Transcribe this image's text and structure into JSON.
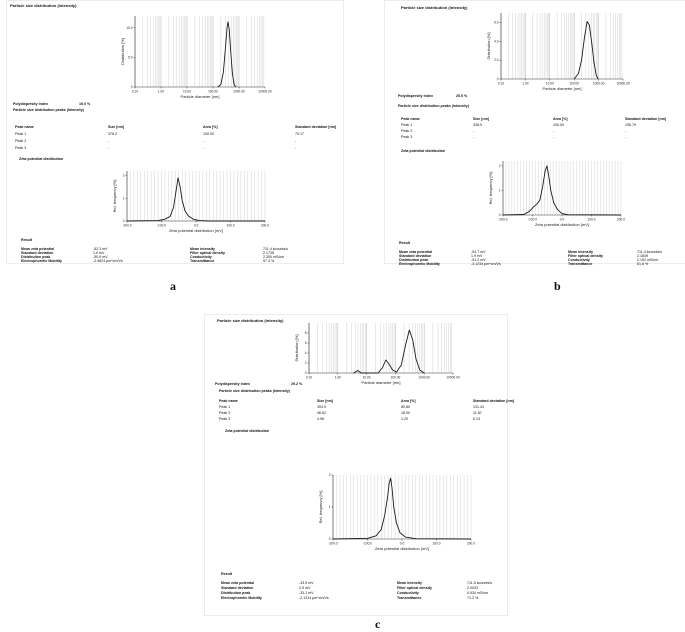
{
  "panels": [
    {
      "letter": "a",
      "psd_title": "Particle size distribution (Intensity)",
      "pdi_label": "Polydispersity index",
      "pdi_value": "19.0 %",
      "peaks_title": "Particle size distribution peaks (Intensity)",
      "peak_headers": [
        "Peak name",
        "Size [nm]",
        "Area [%]",
        "Standard deviation [nm]"
      ],
      "peak_rows": [
        [
          "Peak 1",
          "376.2",
          "100.00",
          "79.17"
        ],
        [
          "Peak 2",
          "-",
          "-",
          "-"
        ],
        [
          "Peak 3",
          "-",
          "-",
          "-"
        ]
      ],
      "zeta_title": "Zeta potential distribution",
      "result_title": "Result",
      "results_left": [
        [
          "Mean zeta potential",
          "-52.3 mV"
        ],
        [
          "Standard deviation",
          "1.9 mV"
        ],
        [
          "Distribution peak",
          "-50.9 mV"
        ],
        [
          "Electrophoretic Mobility",
          "-2.9824 µm*cm/Vs"
        ]
      ],
      "results_right": [
        [
          "Mean intensity",
          "711.4 kcounts/s"
        ],
        [
          "Filter optical density",
          "2.1738"
        ],
        [
          "Conductivity",
          "2.300 mS/cm"
        ],
        [
          "Transmittance",
          "57.3 %"
        ]
      ]
    },
    {
      "letter": "b",
      "psd_title": "Particle size distribution (Intensity)",
      "pdi_label": "Polydispersity index",
      "pdi_value": "25.5 %",
      "peaks_title": "Particle size distribution peaks (Intensity)",
      "peak_headers": [
        "Peak name",
        "Size [nm]",
        "Area [%]",
        "Standard deviation [nm]"
      ],
      "peak_rows": [
        [
          "Peak 1",
          "338.0",
          "100.00",
          "155.79"
        ],
        [
          "Peak 2",
          "-",
          "-",
          "-"
        ],
        [
          "Peak 3",
          "-",
          "-",
          "-"
        ]
      ],
      "zeta_title": "Zeta potential distribution",
      "result_title": "Result",
      "results_left": [
        [
          "Mean zeta potential",
          "-54.7 mV"
        ],
        [
          "Standard deviation",
          "1.9 mV"
        ],
        [
          "Distribution peak",
          "-51.2 mV"
        ],
        [
          "Electrophoretic Mobility",
          "-3.1244 µm*cm/Vs"
        ]
      ],
      "results_right": [
        [
          "Mean intensity",
          "711.4 kcounts/s"
        ],
        [
          "Filter optical density",
          "2.1839"
        ],
        [
          "Conductivity",
          "2.192 mS/cm"
        ],
        [
          "Transmittance",
          "61.8 %"
        ]
      ]
    },
    {
      "letter": "c",
      "psd_title": "Particle size distribution (Intensity)",
      "pdi_label": "Polydispersity index",
      "pdi_value": "29.2 %",
      "peaks_title": "Particle size distribution peaks (Intensity)",
      "peak_headers": [
        "Peak name",
        "Size [nm]",
        "Area [%]",
        "Standard deviation [nm]"
      ],
      "peak_rows": [
        [
          "Peak 1",
          "304.9",
          "80.80",
          "131.41"
        ],
        [
          "Peak 2",
          "46.62",
          "18.00",
          "11.87"
        ],
        [
          "Peak 3",
          "4.96",
          "1.20",
          "0.13"
        ]
      ],
      "zeta_title": "Zeta potential distribution",
      "result_title": "Result",
      "results_left": [
        [
          "Mean zeta potential",
          "-33.9 mV"
        ],
        [
          "Standard deviation",
          "2.9 mV"
        ],
        [
          "Distribution peak",
          "-33.1 mV"
        ],
        [
          "Electrophoretic Mobility",
          "-2.1314 µm*cm/Vs"
        ]
      ],
      "results_right": [
        [
          "Mean intensity",
          "711.5 kcounts/s"
        ],
        [
          "Filter optical density",
          "2.0033"
        ],
        [
          "Conductivity",
          "0.934 mS/cm"
        ],
        [
          "Transmittance",
          "71.3 %"
        ]
      ]
    }
  ],
  "chart_data": [
    {
      "panel": "a",
      "type": "line",
      "xlabel": "Particle diameter [nm]",
      "ylabel": "Distribution [%]",
      "x_scale": "log",
      "xlim": [
        0.1,
        10000
      ],
      "ylim": [
        0,
        12
      ],
      "x_ticks": [
        "0.10",
        "1.00",
        "10.00",
        "100.00",
        "1000.00",
        "10000.00"
      ],
      "y_ticks": [
        "0",
        "5.0",
        "10.0"
      ],
      "series": [
        {
          "x": [
            150,
            200,
            250,
            300,
            350,
            376.2,
            420,
            480,
            560,
            650,
            750
          ],
          "y": [
            0,
            0.4,
            2.5,
            6.5,
            10.2,
            11.0,
            9.8,
            6.0,
            2.2,
            0.4,
            0
          ]
        }
      ]
    },
    {
      "panel": "a",
      "type": "line",
      "xlabel": "Zeta potential distribution [mV]",
      "ylabel": "Rel. frequency [%]",
      "xlim": [
        -200,
        200
      ],
      "ylim": [
        0,
        2.2
      ],
      "x_ticks": [
        "-200.0",
        "-100.0",
        "0.0",
        "100.0",
        "200.0"
      ],
      "y_ticks": [
        "0",
        "1",
        "2"
      ],
      "series": [
        {
          "x": [
            -200,
            -110,
            -90,
            -75,
            -65,
            -58,
            -52,
            -46,
            -40,
            -32,
            -22,
            -8,
            10,
            40,
            200
          ],
          "y": [
            0,
            0.02,
            0.08,
            0.2,
            0.6,
            1.3,
            1.9,
            1.5,
            0.9,
            0.45,
            0.22,
            0.08,
            0.02,
            0,
            0
          ]
        }
      ]
    },
    {
      "panel": "b",
      "type": "line",
      "xlabel": "Particle diameter [nm]",
      "ylabel": "Distribution [%]",
      "x_scale": "log",
      "xlim": [
        0.1,
        10000
      ],
      "ylim": [
        0,
        7
      ],
      "x_ticks": [
        "0.10",
        "1.00",
        "10.00",
        "100.00",
        "1000.00",
        "10000.00"
      ],
      "y_ticks": [
        "0",
        "2.0",
        "4.0",
        "6.0"
      ],
      "series": [
        {
          "x": [
            100,
            150,
            200,
            260,
            338,
            420,
            520,
            650,
            800,
            950
          ],
          "y": [
            0,
            0.6,
            2.0,
            4.3,
            6.1,
            5.7,
            3.9,
            1.7,
            0.4,
            0
          ]
        }
      ]
    },
    {
      "panel": "b",
      "type": "line",
      "xlabel": "Zeta potential distribution [mV]",
      "ylabel": "Rel. frequency [%]",
      "xlim": [
        -200,
        200
      ],
      "ylim": [
        0,
        2.2
      ],
      "x_ticks": [
        "-200.0",
        "-100.0",
        "0.0",
        "100.0",
        "200.0"
      ],
      "y_ticks": [
        "0",
        "1",
        "2"
      ],
      "series": [
        {
          "x": [
            -200,
            -130,
            -110,
            -95,
            -85,
            -75,
            -65,
            -57,
            -51,
            -45,
            -38,
            -28,
            -15,
            0,
            20,
            200
          ],
          "y": [
            0,
            0.02,
            0.15,
            0.35,
            0.45,
            0.6,
            1.2,
            1.8,
            2.0,
            1.6,
            1.0,
            0.5,
            0.22,
            0.06,
            0.01,
            0
          ]
        }
      ]
    },
    {
      "panel": "c",
      "type": "line",
      "xlabel": "Particle diameter [nm]",
      "ylabel": "Distribution [%]",
      "x_scale": "log",
      "xlim": [
        0.1,
        10000
      ],
      "ylim": [
        0,
        10
      ],
      "x_ticks": [
        "0.10",
        "1.00",
        "10.00",
        "100.00",
        "1000.00",
        "10000.00"
      ],
      "y_ticks": [
        "0",
        "2",
        "4",
        "6",
        "8"
      ],
      "series": [
        {
          "x": [
            3.5,
            4.96,
            6.5,
            25,
            35,
            46.62,
            60,
            80,
            110,
            160,
            230,
            304.9,
            400,
            520,
            700,
            1000
          ],
          "y": [
            0,
            0.5,
            0,
            0,
            1.0,
            2.6,
            1.8,
            0.6,
            0.2,
            1.6,
            5.8,
            8.6,
            6.6,
            2.8,
            0.6,
            0
          ]
        }
      ]
    },
    {
      "panel": "c",
      "type": "line",
      "xlabel": "Zeta potential distribution [mV]",
      "ylabel": "Rel. frequency [%]",
      "xlim": [
        -200,
        200
      ],
      "ylim": [
        0,
        2
      ],
      "x_ticks": [
        "-200.0",
        "-100.0",
        "0.0",
        "100.0",
        "200.0"
      ],
      "y_ticks": [
        "0",
        "1",
        "2"
      ],
      "series": [
        {
          "x": [
            -200,
            -100,
            -75,
            -60,
            -50,
            -42,
            -37,
            -33,
            -29,
            -24,
            -16,
            -6,
            10,
            40,
            200
          ],
          "y": [
            0,
            0.02,
            0.1,
            0.3,
            0.75,
            1.3,
            1.75,
            1.9,
            1.6,
            1.0,
            0.5,
            0.2,
            0.06,
            0.01,
            0
          ]
        }
      ]
    }
  ],
  "colors": {
    "line": "#1a1a1a",
    "grid": "#b5b5b5",
    "axis": "#333333"
  }
}
